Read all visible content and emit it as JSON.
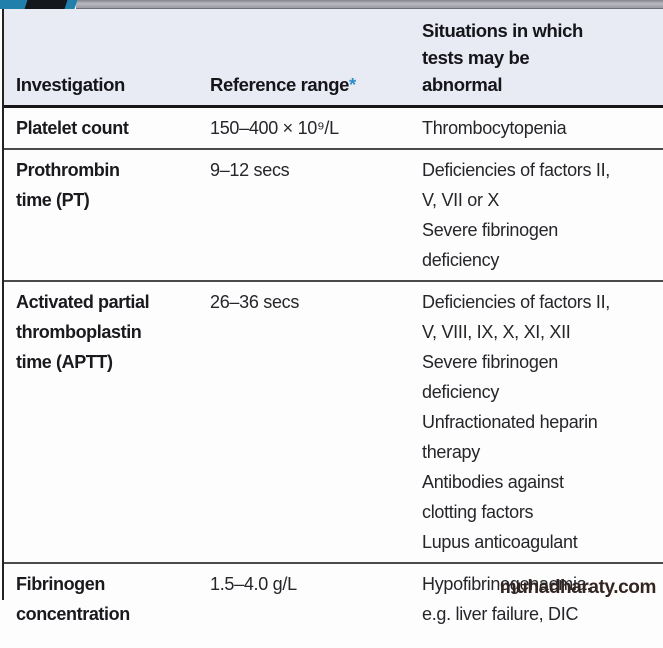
{
  "page": {
    "watermark": "muhadharaty.com",
    "accent_teal": "#2180ab",
    "strip_silver": "#a9a9b1",
    "header_bg": "#e9ebf4",
    "asterisk_color": "#2a8fc7"
  },
  "table": {
    "headers": {
      "investigation": "Investigation",
      "reference_range": "Reference range",
      "reference_range_asterisk": "*",
      "situations": "Situations in which tests may be abnormal"
    },
    "rows": [
      {
        "investigation": "Platelet count",
        "reference_range": "150–400 × 10⁹/L",
        "situations": [
          "Thrombocytopenia"
        ]
      },
      {
        "investigation": "Prothrombin time (PT)",
        "reference_range": "9–12 secs",
        "situations": [
          "Deficiencies of factors II, V, VII or X",
          "Severe fibrinogen deficiency"
        ]
      },
      {
        "investigation": "Activated partial thromboplastin time (APTT)",
        "reference_range": "26–36 secs",
        "situations": [
          "Deficiencies of factors II, V, VIII, IX, X, XI, XII",
          "Severe fibrinogen deficiency",
          "Unfractionated heparin therapy",
          "Antibodies against clotting factors",
          "Lupus anticoagulant"
        ]
      },
      {
        "investigation": "Fibrinogen concentration",
        "reference_range": "1.5–4.0 g/L",
        "situations": [
          "Hypofibrinogenaemia, e.g. liver failure, DIC"
        ]
      }
    ]
  }
}
